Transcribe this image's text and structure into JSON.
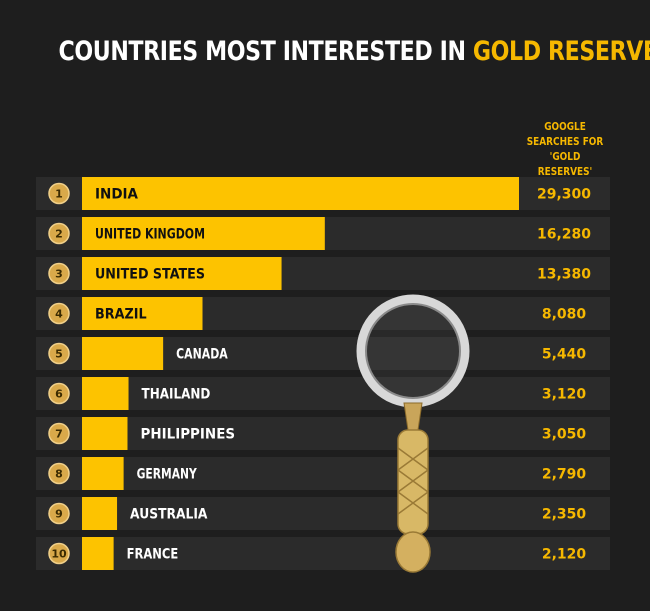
{
  "title": {
    "part1": "COUNTRIES MOST INTERESTED IN",
    "part2": "GOLD RESERVES"
  },
  "column_header": [
    "GOOGLE",
    "SEARCHES FOR",
    "'GOLD RESERVES'"
  ],
  "colors": {
    "background": "#1e1e1e",
    "row": "#2b2b2b",
    "bar": "#fdc300",
    "accent": "#f6b800",
    "rank_badge": "#d9a94a"
  },
  "chart_data": {
    "type": "bar",
    "orientation": "horizontal",
    "title": "COUNTRIES MOST INTERESTED IN GOLD RESERVES",
    "value_label": "GOOGLE SEARCHES FOR 'GOLD RESERVES'",
    "ranks": [
      "1",
      "2",
      "3",
      "4",
      "5",
      "6",
      "7",
      "8",
      "9",
      "10"
    ],
    "categories": [
      "INDIA",
      "UNITED KINGDOM",
      "UNITED STATES",
      "BRAZIL",
      "CANADA",
      "THAILAND",
      "PHILIPPINES",
      "GERMANY",
      "AUSTRALIA",
      "FRANCE"
    ],
    "values": [
      29300,
      16280,
      13380,
      8080,
      5440,
      3120,
      3050,
      2790,
      2350,
      2120
    ],
    "value_labels": [
      "29,300",
      "16,280",
      "13,380",
      "8,080",
      "5,440",
      "3,120",
      "3,050",
      "2,790",
      "2,350",
      "2,120"
    ]
  }
}
